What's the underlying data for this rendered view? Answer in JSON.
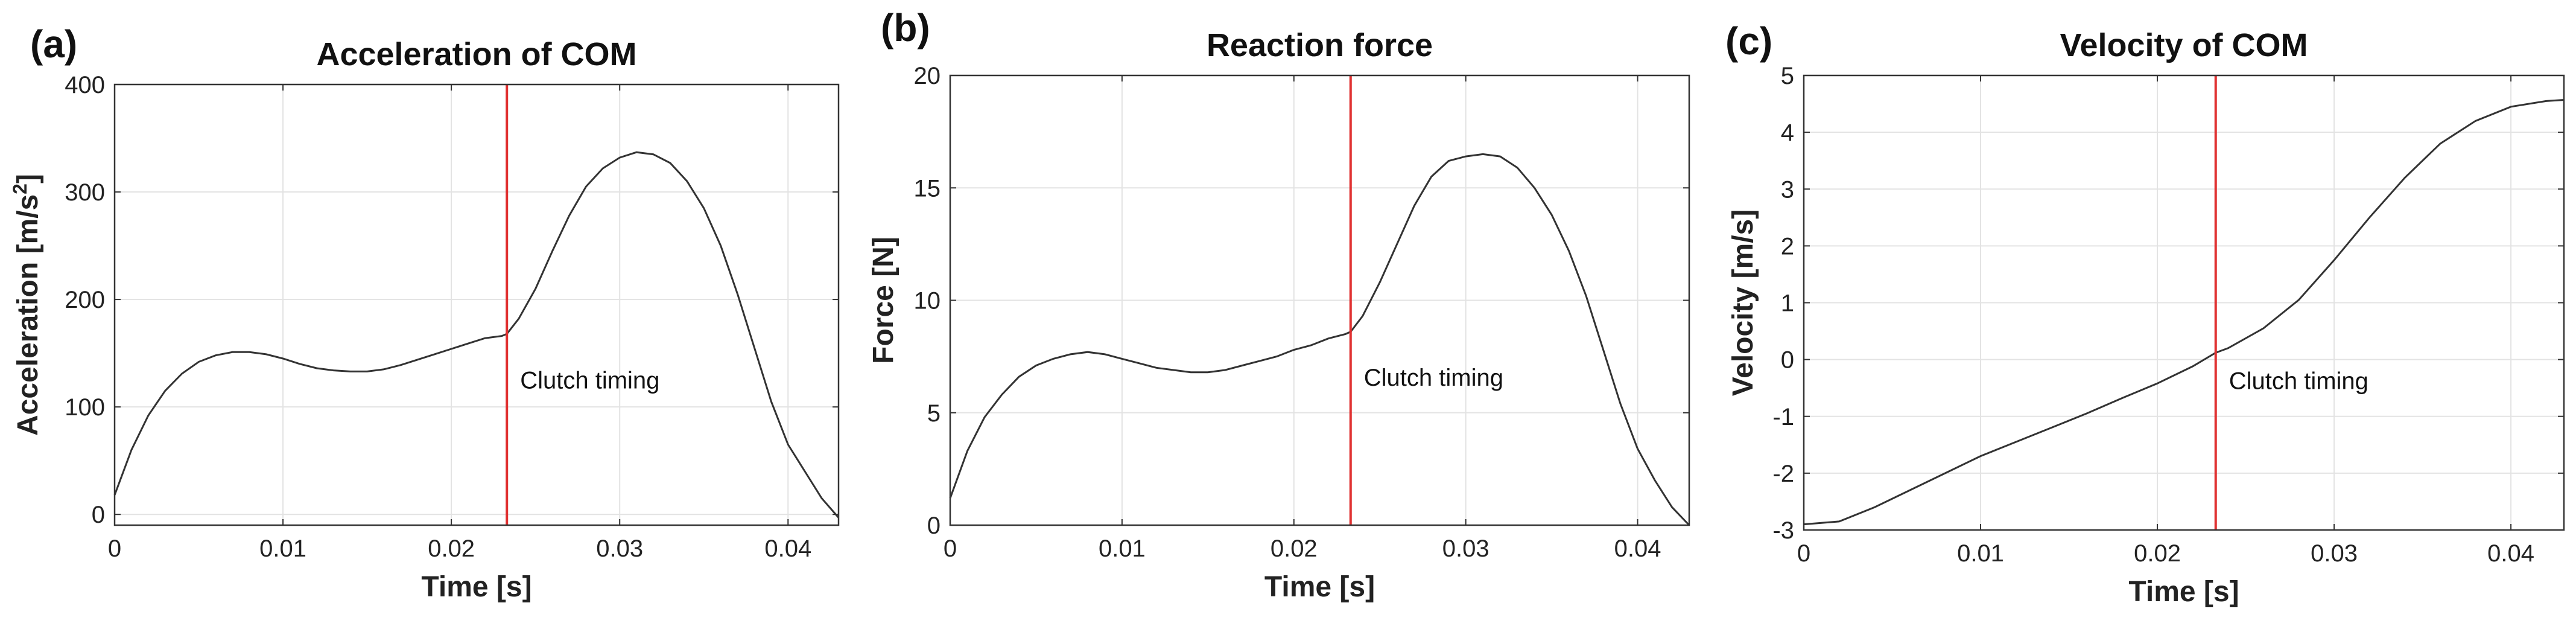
{
  "chart_data": [
    {
      "type": "line",
      "panel": "(a)",
      "title": "Acceleration of COM",
      "xlabel": "Time [s]",
      "ylabel": "Acceleration [m/s",
      "ylabel_sup": "2",
      "ylabel_end": "]",
      "xlim": [
        0,
        0.043
      ],
      "ylim": [
        -10,
        400
      ],
      "xticks": [
        0,
        0.01,
        0.02,
        0.03,
        0.04
      ],
      "xtick_labels": [
        "0",
        "0.01",
        "0.02",
        "0.03",
        "0.04"
      ],
      "yticks": [
        0,
        100,
        200,
        300,
        400
      ],
      "ytick_labels": [
        "0",
        "100",
        "200",
        "300",
        "400"
      ],
      "grid": true,
      "annotation": {
        "text": "Clutch timing",
        "x": 0.0233
      },
      "series": [
        {
          "name": "Acceleration",
          "x": [
            0,
            0.001,
            0.002,
            0.003,
            0.004,
            0.005,
            0.006,
            0.007,
            0.008,
            0.009,
            0.01,
            0.011,
            0.012,
            0.013,
            0.014,
            0.015,
            0.016,
            0.017,
            0.018,
            0.019,
            0.02,
            0.021,
            0.022,
            0.023,
            0.0233,
            0.024,
            0.025,
            0.026,
            0.027,
            0.028,
            0.029,
            0.03,
            0.031,
            0.032,
            0.033,
            0.034,
            0.035,
            0.036,
            0.037,
            0.038,
            0.039,
            0.04,
            0.041,
            0.042,
            0.043
          ],
          "y": [
            18,
            60,
            92,
            115,
            131,
            142,
            148,
            151,
            151,
            149,
            145,
            140,
            136,
            134,
            133,
            133,
            135,
            139,
            144,
            149,
            154,
            159,
            164,
            166,
            168,
            182,
            210,
            245,
            278,
            305,
            322,
            332,
            337,
            335,
            327,
            310,
            285,
            250,
            205,
            155,
            105,
            65,
            40,
            15,
            -3
          ]
        }
      ]
    },
    {
      "type": "line",
      "panel": "(b)",
      "title": "Reaction force",
      "xlabel": "Time [s]",
      "ylabel": "Force [N]",
      "xlim": [
        0,
        0.043
      ],
      "ylim": [
        0,
        20
      ],
      "xticks": [
        0,
        0.01,
        0.02,
        0.03,
        0.04
      ],
      "xtick_labels": [
        "0",
        "0.01",
        "0.02",
        "0.03",
        "0.04"
      ],
      "yticks": [
        0,
        5,
        10,
        15,
        20
      ],
      "ytick_labels": [
        "0",
        "5",
        "10",
        "15",
        "20"
      ],
      "grid": true,
      "annotation": {
        "text": "Clutch timing",
        "x": 0.0233
      },
      "series": [
        {
          "name": "Reaction force",
          "x": [
            0,
            0.001,
            0.002,
            0.003,
            0.004,
            0.005,
            0.006,
            0.007,
            0.008,
            0.009,
            0.01,
            0.011,
            0.012,
            0.013,
            0.014,
            0.015,
            0.016,
            0.017,
            0.018,
            0.019,
            0.02,
            0.021,
            0.022,
            0.023,
            0.0233,
            0.024,
            0.025,
            0.026,
            0.027,
            0.028,
            0.029,
            0.03,
            0.031,
            0.032,
            0.033,
            0.034,
            0.035,
            0.036,
            0.037,
            0.038,
            0.039,
            0.04,
            0.041,
            0.042,
            0.043
          ],
          "y": [
            1.2,
            3.3,
            4.8,
            5.8,
            6.6,
            7.1,
            7.4,
            7.6,
            7.7,
            7.6,
            7.4,
            7.2,
            7.0,
            6.9,
            6.8,
            6.8,
            6.9,
            7.1,
            7.3,
            7.5,
            7.8,
            8.0,
            8.3,
            8.5,
            8.6,
            9.3,
            10.8,
            12.5,
            14.2,
            15.5,
            16.2,
            16.4,
            16.5,
            16.4,
            15.9,
            15.0,
            13.8,
            12.2,
            10.2,
            7.8,
            5.4,
            3.4,
            2.0,
            0.8,
            0.0
          ]
        }
      ]
    },
    {
      "type": "line",
      "panel": "(c)",
      "title": "Velocity of COM",
      "xlabel": "Time [s]",
      "ylabel": "Velocity [m/s]",
      "xlim": [
        0,
        0.043
      ],
      "ylim": [
        -3,
        5
      ],
      "xticks": [
        0,
        0.01,
        0.02,
        0.03,
        0.04
      ],
      "xtick_labels": [
        "0",
        "0.01",
        "0.02",
        "0.03",
        "0.04"
      ],
      "yticks": [
        -3,
        -2,
        -1,
        0,
        1,
        2,
        3,
        4,
        5
      ],
      "ytick_labels": [
        "-3",
        "-2",
        "-1",
        "0",
        "1",
        "2",
        "3",
        "4",
        "5"
      ],
      "grid": true,
      "annotation": {
        "text": "Clutch timing",
        "x": 0.0233
      },
      "series": [
        {
          "name": "Velocity",
          "x": [
            0,
            0.002,
            0.004,
            0.006,
            0.008,
            0.01,
            0.012,
            0.014,
            0.016,
            0.018,
            0.02,
            0.022,
            0.0233,
            0.024,
            0.026,
            0.028,
            0.03,
            0.032,
            0.034,
            0.036,
            0.038,
            0.04,
            0.042,
            0.043
          ],
          "y": [
            -2.9,
            -2.85,
            -2.6,
            -2.3,
            -2.0,
            -1.7,
            -1.45,
            -1.2,
            -0.95,
            -0.68,
            -0.42,
            -0.12,
            0.12,
            0.2,
            0.55,
            1.05,
            1.75,
            2.5,
            3.2,
            3.8,
            4.2,
            4.45,
            4.55,
            4.57
          ]
        }
      ]
    }
  ]
}
